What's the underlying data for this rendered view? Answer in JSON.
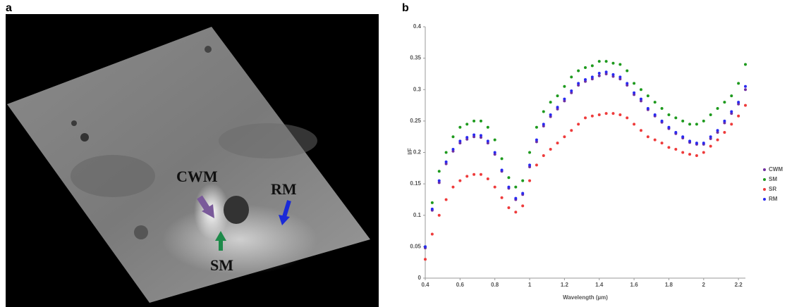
{
  "image_panel": {
    "label": "a",
    "annotations": [
      "CWM",
      "RM",
      "SM"
    ]
  },
  "chart_data": {
    "type": "scatter",
    "panel_label": "b",
    "x_label": "Wavelength (µm)",
    "y_label": "I/F",
    "xlim": [
      0.4,
      2.24
    ],
    "xticks": [
      0.4,
      0.6,
      0.8,
      1,
      1.2,
      1.4,
      1.6,
      1.8,
      2,
      2.2
    ],
    "ylim": [
      0,
      0.4
    ],
    "yticks": [
      0,
      0.05,
      0.1,
      0.15,
      0.2,
      0.25,
      0.3,
      0.35,
      0.4
    ],
    "legend": "right",
    "x": [
      0.4,
      0.44,
      0.48,
      0.52,
      0.56,
      0.6,
      0.64,
      0.68,
      0.72,
      0.76,
      0.8,
      0.84,
      0.88,
      0.92,
      0.96,
      1.0,
      1.04,
      1.08,
      1.12,
      1.16,
      1.2,
      1.24,
      1.28,
      1.32,
      1.36,
      1.4,
      1.44,
      1.48,
      1.52,
      1.56,
      1.6,
      1.64,
      1.68,
      1.72,
      1.76,
      1.8,
      1.84,
      1.88,
      1.92,
      1.96,
      2.0,
      2.04,
      2.08,
      2.12,
      2.16,
      2.2,
      2.24
    ],
    "series": [
      {
        "name": "CWM",
        "color": "#7030a0",
        "values": [
          0.048,
          0.108,
          0.152,
          0.182,
          0.202,
          0.215,
          0.221,
          0.225,
          0.224,
          0.215,
          0.197,
          0.17,
          0.143,
          0.125,
          0.133,
          0.177,
          0.217,
          0.242,
          0.257,
          0.269,
          0.282,
          0.295,
          0.307,
          0.313,
          0.317,
          0.322,
          0.325,
          0.321,
          0.317,
          0.307,
          0.292,
          0.282,
          0.268,
          0.258,
          0.248,
          0.238,
          0.23,
          0.223,
          0.216,
          0.213,
          0.213,
          0.222,
          0.232,
          0.247,
          0.262,
          0.277,
          0.3
        ]
      },
      {
        "name": "SM",
        "color": "#1e9a1e",
        "values": [
          0.05,
          0.12,
          0.17,
          0.2,
          0.225,
          0.24,
          0.245,
          0.25,
          0.25,
          0.24,
          0.22,
          0.19,
          0.16,
          0.145,
          0.155,
          0.2,
          0.24,
          0.265,
          0.28,
          0.29,
          0.305,
          0.32,
          0.33,
          0.335,
          0.338,
          0.345,
          0.345,
          0.342,
          0.34,
          0.33,
          0.31,
          0.3,
          0.29,
          0.28,
          0.27,
          0.26,
          0.255,
          0.25,
          0.245,
          0.245,
          0.25,
          0.26,
          0.27,
          0.28,
          0.29,
          0.31,
          0.34
        ]
      },
      {
        "name": "SR",
        "color": "#ee3b3b",
        "values": [
          0.03,
          0.07,
          0.1,
          0.125,
          0.145,
          0.155,
          0.162,
          0.165,
          0.165,
          0.158,
          0.145,
          0.128,
          0.112,
          0.105,
          0.115,
          0.155,
          0.18,
          0.195,
          0.205,
          0.215,
          0.225,
          0.235,
          0.245,
          0.255,
          0.258,
          0.26,
          0.262,
          0.262,
          0.26,
          0.255,
          0.245,
          0.235,
          0.225,
          0.22,
          0.215,
          0.208,
          0.205,
          0.2,
          0.197,
          0.195,
          0.2,
          0.21,
          0.22,
          0.232,
          0.245,
          0.258,
          0.275
        ]
      },
      {
        "name": "RM",
        "color": "#2a2af0",
        "values": [
          0.05,
          0.11,
          0.155,
          0.185,
          0.205,
          0.218,
          0.224,
          0.228,
          0.227,
          0.218,
          0.2,
          0.172,
          0.145,
          0.127,
          0.135,
          0.18,
          0.22,
          0.245,
          0.26,
          0.272,
          0.285,
          0.298,
          0.31,
          0.316,
          0.32,
          0.326,
          0.328,
          0.324,
          0.32,
          0.31,
          0.295,
          0.285,
          0.27,
          0.26,
          0.25,
          0.24,
          0.232,
          0.225,
          0.218,
          0.215,
          0.215,
          0.225,
          0.235,
          0.25,
          0.265,
          0.28,
          0.305
        ]
      }
    ]
  }
}
